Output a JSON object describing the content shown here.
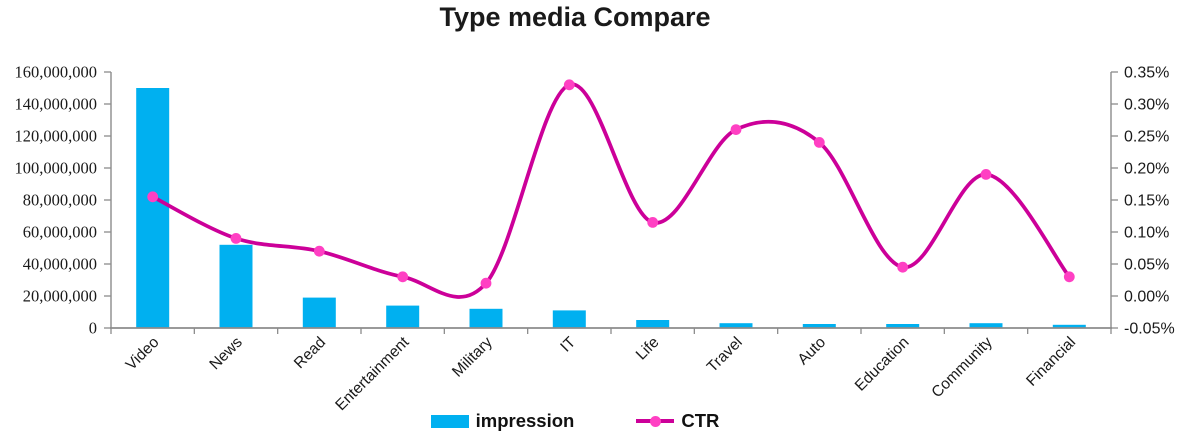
{
  "title": "Type media Compare",
  "legend": {
    "impression_label": "impression",
    "ctr_label": "CTR"
  },
  "chart_data": {
    "type": "combo: bar + smooth line",
    "title": "Type media Compare",
    "categories": [
      "Video",
      "News",
      "Read",
      "Entertainment",
      "Military",
      "IT",
      "Life",
      "Travel",
      "Auto",
      "Education",
      "Community",
      "Financial"
    ],
    "series": [
      {
        "name": "impression",
        "type": "bar",
        "axis": "left",
        "color": "#00B0F0",
        "values": [
          150000000,
          52000000,
          19000000,
          14000000,
          12000000,
          11000000,
          5000000,
          3000000,
          2500000,
          2500000,
          3000000,
          2000000
        ]
      },
      {
        "name": "CTR",
        "type": "line",
        "smooth": true,
        "axis": "right",
        "color": "#CC0099",
        "marker_color": "#FF40C3",
        "values_percent": [
          0.155,
          0.09,
          0.07,
          0.03,
          0.02,
          0.33,
          0.115,
          0.26,
          0.24,
          0.045,
          0.19,
          0.03
        ]
      }
    ],
    "left_axis": {
      "min": 0,
      "max": 160000000,
      "step": 20000000,
      "tick_labels": [
        "0",
        "20,000,000",
        "40,000,000",
        "60,000,000",
        "80,000,000",
        "100,000,000",
        "120,000,000",
        "140,000,000",
        "160,000,000"
      ]
    },
    "right_axis": {
      "min": -0.05,
      "max": 0.35,
      "step": 0.05,
      "tick_labels": [
        "-0.05%",
        "0.00%",
        "0.05%",
        "0.10%",
        "0.15%",
        "0.20%",
        "0.25%",
        "0.30%",
        "0.35%"
      ]
    },
    "axis_color": "#8C8C8C",
    "text_color": "#1A1A1A",
    "grid": false,
    "legend_position": "bottom"
  }
}
